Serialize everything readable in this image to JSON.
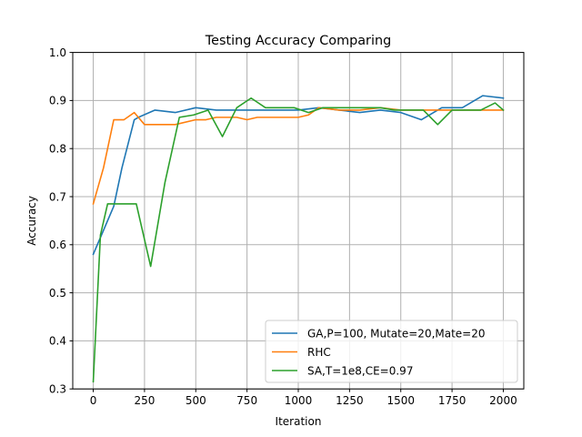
{
  "chart_data": {
    "type": "line",
    "title": "Testing Accuracy Comparing",
    "xlabel": "Iteration",
    "ylabel": "Accuracy",
    "xlim": [
      -100,
      2100
    ],
    "ylim": [
      0.3,
      1.0
    ],
    "xticks": [
      0,
      250,
      500,
      750,
      1000,
      1250,
      1500,
      1750,
      2000
    ],
    "xtick_labels": [
      "0",
      "250",
      "500",
      "750",
      "1000",
      "1250",
      "1500",
      "1750",
      "2000"
    ],
    "yticks": [
      0.3,
      0.4,
      0.5,
      0.6,
      0.7,
      0.8,
      0.9,
      1.0
    ],
    "ytick_labels": [
      "0.3",
      "0.4",
      "0.5",
      "0.6",
      "0.7",
      "0.8",
      "0.9",
      "1.0"
    ],
    "grid": true,
    "legend_position": "lower-right",
    "series": [
      {
        "name": "GA,P=100, Mutate=20,Mate=20",
        "color": "#1f77b4",
        "x": [
          0,
          60,
          100,
          140,
          200,
          220,
          300,
          400,
          500,
          600,
          700,
          800,
          900,
          1000,
          1100,
          1200,
          1300,
          1400,
          1500,
          1600,
          1700,
          1800,
          1900,
          2000
        ],
        "y": [
          0.58,
          0.64,
          0.68,
          0.76,
          0.86,
          0.865,
          0.88,
          0.875,
          0.885,
          0.88,
          0.88,
          0.88,
          0.88,
          0.88,
          0.885,
          0.88,
          0.875,
          0.88,
          0.875,
          0.86,
          0.885,
          0.885,
          0.91,
          0.905
        ]
      },
      {
        "name": "RHC",
        "color": "#ff7f0e",
        "x": [
          0,
          50,
          100,
          150,
          200,
          250,
          300,
          400,
          500,
          550,
          600,
          700,
          750,
          800,
          900,
          1000,
          1050,
          1100,
          1200,
          1300,
          1400,
          1500,
          1600,
          1700,
          1800,
          1900,
          2000
        ],
        "y": [
          0.685,
          0.76,
          0.86,
          0.86,
          0.875,
          0.85,
          0.85,
          0.85,
          0.86,
          0.86,
          0.865,
          0.865,
          0.86,
          0.865,
          0.865,
          0.865,
          0.87,
          0.885,
          0.88,
          0.88,
          0.885,
          0.88,
          0.88,
          0.88,
          0.88,
          0.88,
          0.88
        ]
      },
      {
        "name": "SA,T=1e8,CE=0.97",
        "color": "#2ca02c",
        "x": [
          0,
          35,
          70,
          140,
          210,
          280,
          350,
          420,
          490,
          560,
          630,
          700,
          770,
          840,
          910,
          980,
          1050,
          1120,
          1190,
          1260,
          1330,
          1400,
          1470,
          1540,
          1610,
          1680,
          1750,
          1820,
          1890,
          1960,
          2000
        ],
        "y": [
          0.315,
          0.62,
          0.685,
          0.685,
          0.685,
          0.555,
          0.73,
          0.865,
          0.87,
          0.88,
          0.825,
          0.885,
          0.905,
          0.885,
          0.885,
          0.885,
          0.875,
          0.885,
          0.885,
          0.885,
          0.885,
          0.885,
          0.88,
          0.88,
          0.88,
          0.85,
          0.88,
          0.88,
          0.88,
          0.895,
          0.88
        ]
      }
    ]
  }
}
